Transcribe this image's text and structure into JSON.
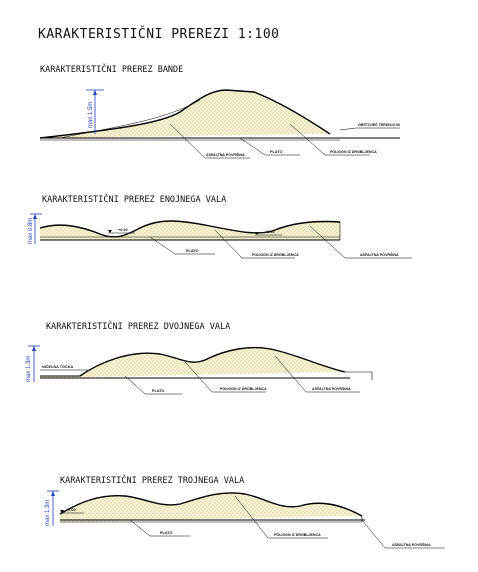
{
  "sheet": {
    "title": "KARAKTERISTIČNI PREREZI 1:100"
  },
  "sections": [
    {
      "title": "KARAKTERISTIČNI PREREZ BANDE",
      "height_label": "max 1.5m",
      "labels": {
        "terrain": "OBSTOJEČ TEREN=0.00",
        "plato": "PLATO",
        "polygon": "POLIGON IZ DROBLJENCA",
        "asphalt": "ASFALTNA POVRŠINA"
      }
    },
    {
      "title": "KARAKTERISTIČNI PREREZ ENOJNEGA VALA",
      "height_label": "max 0.8m",
      "levels": [
        "+0.20",
        "+0.20"
      ],
      "labels": {
        "plato": "PLATO",
        "polygon": "POLIGON IZ DROBLJENCA",
        "asphalt": "ASFALTNA POVRŠINA"
      }
    },
    {
      "title": "KARAKTERISTIČNI PREREZ DVOJNEGA VALA",
      "height_label": "max 1.3m",
      "labels": {
        "reference": "NIČELNA TOČKA",
        "plato": "PLATO",
        "polygon": "POLIGON IZ DROBLJENCA",
        "asphalt": "ASFALTNA POVRŠINA"
      }
    },
    {
      "title": "KARAKTERISTIČNI PREREZ TROJNEGA VALA",
      "height_label": "max 1.3m",
      "levels": [
        "+0.00"
      ],
      "labels": {
        "plato": "PLATO",
        "polygon": "POLIGON IZ DROBLJENCA",
        "asphalt": "ASFALTNA POVRŠINA"
      }
    }
  ]
}
